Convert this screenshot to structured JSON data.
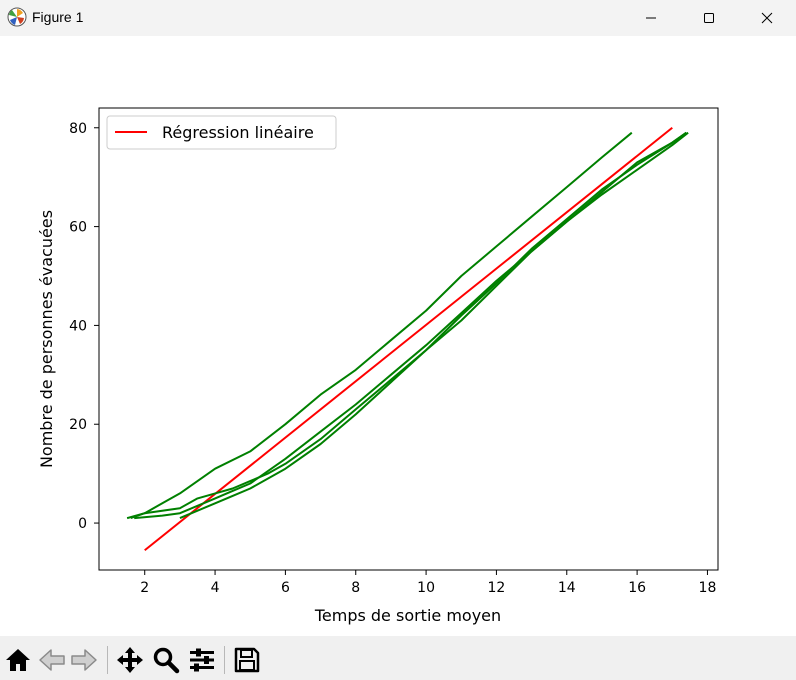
{
  "window": {
    "title": "Figure 1",
    "icon": "matplotlib-logo-icon",
    "controls": [
      "minimize-icon",
      "maximize-icon",
      "close-icon"
    ]
  },
  "toolbar": {
    "tools": [
      "home-icon",
      "back-arrow-icon",
      "forward-arrow-icon",
      "pan-icon",
      "zoom-icon",
      "configure-subplots-icon",
      "save-icon"
    ]
  },
  "chart_data": {
    "type": "line",
    "xlabel": "Temps de sortie moyen",
    "ylabel": "Nombre de personnes évacuées",
    "xlim": [
      0.7,
      18.3
    ],
    "ylim": [
      -9.5,
      84
    ],
    "xticks": [
      2,
      4,
      6,
      8,
      10,
      12,
      14,
      16,
      18
    ],
    "yticks": [
      0,
      20,
      40,
      60,
      80
    ],
    "grid": false,
    "legend": {
      "position": "top-left",
      "entries": [
        "Régression linéaire"
      ]
    },
    "colors": {
      "regression": "#ff0000",
      "series": "#008000"
    },
    "regression": {
      "name": "Régression linéaire",
      "x": [
        2.0,
        17.0
      ],
      "y": [
        -5.5,
        80
      ]
    },
    "series": [
      {
        "x": [
          1.6,
          2.0,
          2.5,
          3.0,
          3.5,
          4.0,
          5.0,
          6.0,
          7.0,
          8.0,
          9.0,
          10.0,
          11.0,
          12.0,
          13.0,
          14.0,
          15.0,
          15.85
        ],
        "y": [
          1,
          2,
          4,
          6,
          8.5,
          11,
          14.5,
          20,
          26,
          31,
          37,
          43,
          50,
          56,
          62,
          68,
          74,
          79
        ]
      },
      {
        "x": [
          1.7,
          2.5,
          3.0,
          3.5,
          4.0,
          4.5,
          5.0,
          6.0,
          7.0,
          8.0,
          9.0,
          10.0,
          11.0,
          12.0,
          13.0,
          14.0,
          15.0,
          16.0,
          17.0,
          17.45
        ],
        "y": [
          1,
          1.5,
          2,
          3.5,
          5,
          6.5,
          8,
          13,
          18.5,
          24,
          30,
          36,
          42.5,
          49,
          55,
          61,
          66.5,
          71.5,
          76.5,
          79
        ]
      },
      {
        "x": [
          1.5,
          2.0,
          3.0,
          3.5,
          4.0,
          4.5,
          5.0,
          5.5,
          6.0,
          7.0,
          8.0,
          9.0,
          10.0,
          11.0,
          12.0,
          13.0,
          14.0,
          15.0,
          16.0,
          17.0,
          17.4
        ],
        "y": [
          1,
          2,
          3,
          5,
          6,
          7,
          8.5,
          10,
          12,
          17,
          23,
          29,
          35,
          41,
          48,
          55,
          61,
          67,
          73,
          77,
          79
        ]
      },
      {
        "x": [
          3.0,
          3.5,
          4.0,
          4.5,
          5.0,
          6.0,
          7.0,
          8.0,
          9.0,
          10.0,
          11.0,
          12.0,
          13.0,
          14.0,
          15.0,
          16.0,
          17.0,
          17.4
        ],
        "y": [
          1,
          2.5,
          4,
          5.5,
          7,
          11,
          16,
          22,
          28.5,
          35,
          42,
          48.5,
          55.5,
          61.5,
          67.5,
          72.5,
          77,
          79
        ]
      }
    ]
  }
}
